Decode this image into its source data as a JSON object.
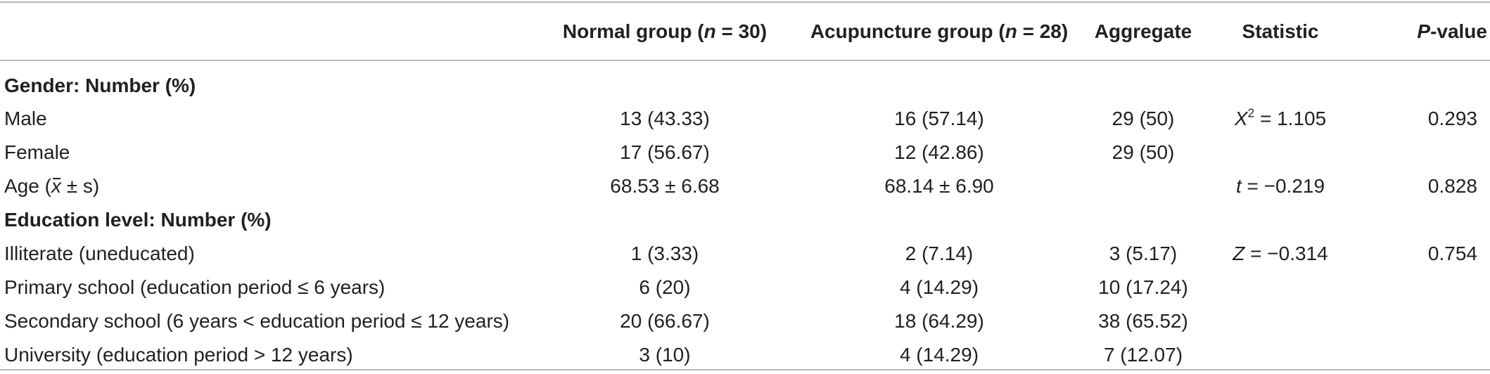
{
  "header": {
    "col0": "",
    "col1_prefix": "Normal group (",
    "col1_var": "n",
    "col1_suffix": " = 30)",
    "col2_prefix": "Acupuncture group (",
    "col2_var": "n",
    "col2_suffix": " = 28)",
    "col3": "Aggregate",
    "col4": "Statistic",
    "col5_var": "P",
    "col5_suffix": "-value"
  },
  "rows": [
    {
      "type": "section",
      "label": "Gender: Number (%)"
    },
    {
      "type": "data",
      "label": "Male",
      "normal": "13 (43.33)",
      "acupuncture": "16 (57.14)",
      "aggregate": "29 (50)",
      "stat_var": "X",
      "stat_sup": "2",
      "stat_rest": " = 1.105",
      "p": "0.293"
    },
    {
      "type": "data",
      "label": "Female",
      "normal": "17 (56.67)",
      "acupuncture": "12 (42.86)",
      "aggregate": "29 (50)",
      "stat_var": "",
      "stat_sup": "",
      "stat_rest": "",
      "p": ""
    },
    {
      "type": "age",
      "label_prefix": "Age (",
      "label_var": "x",
      "label_suffix": " ± s)",
      "normal": "68.53 ± 6.68",
      "acupuncture": "68.14 ± 6.90",
      "aggregate": "",
      "stat_var": "t",
      "stat_rest": " = −0.219",
      "p": "0.828"
    },
    {
      "type": "section",
      "label": "Education level: Number (%)"
    },
    {
      "type": "data",
      "label": "Illiterate (uneducated)",
      "normal": "1 (3.33)",
      "acupuncture": "2 (7.14)",
      "aggregate": "3 (5.17)",
      "stat_var": "Z",
      "stat_sup": "",
      "stat_rest": " = −0.314",
      "p": "0.754"
    },
    {
      "type": "data",
      "label": "Primary school (education period ≤ 6 years)",
      "normal": "6 (20)",
      "acupuncture": "4 (14.29)",
      "aggregate": "10 (17.24)",
      "stat_var": "",
      "stat_sup": "",
      "stat_rest": "",
      "p": ""
    },
    {
      "type": "data",
      "label": "Secondary school (6 years < education period ≤ 12 years)",
      "normal": "20 (66.67)",
      "acupuncture": "18 (64.29)",
      "aggregate": "38 (65.52)",
      "stat_var": "",
      "stat_sup": "",
      "stat_rest": "",
      "p": ""
    },
    {
      "type": "data",
      "label": "University (education period > 12 years)",
      "normal": "3 (10)",
      "acupuncture": "4 (14.29)",
      "aggregate": "7 (12.07)",
      "stat_var": "",
      "stat_sup": "",
      "stat_rest": "",
      "p": ""
    }
  ]
}
